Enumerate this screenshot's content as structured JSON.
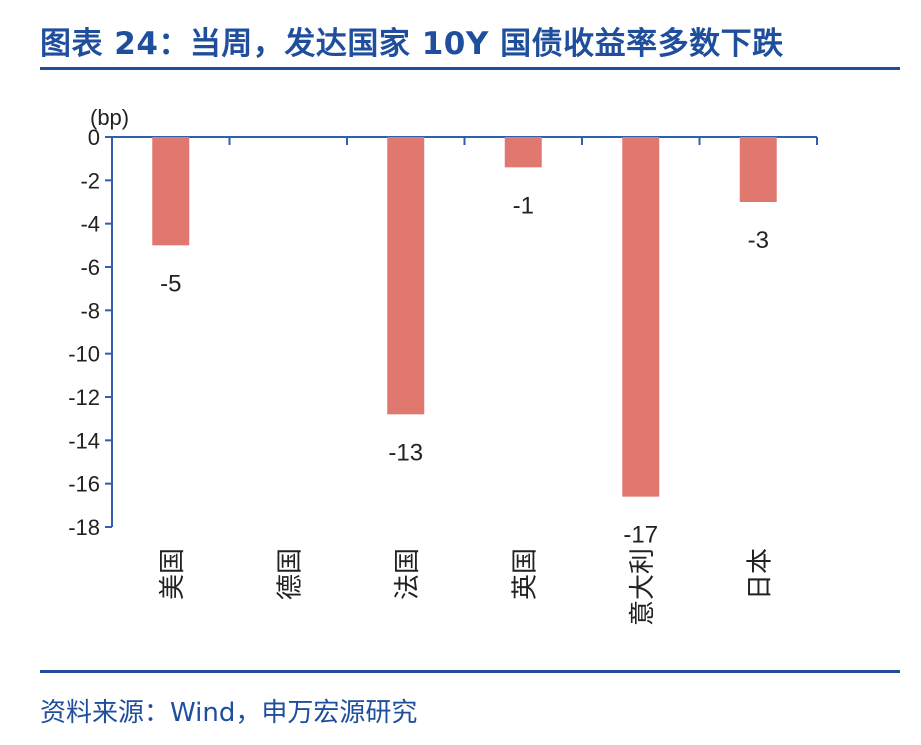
{
  "header": {
    "title": "图表 24：当周，发达国家 10Y 国债收益率多数下跌"
  },
  "footer": {
    "source": "资料来源：Wind，申万宏源研究"
  },
  "chart_data": {
    "type": "bar",
    "unit": "(bp)",
    "categories": [
      "美国",
      "德国",
      "法国",
      "英国",
      "意大利",
      "日本"
    ],
    "values": [
      -5,
      0,
      -12.8,
      -1.4,
      -16.6,
      -3
    ],
    "data_labels": [
      "-5",
      "",
      "-13",
      "-1",
      "-17",
      "-3"
    ],
    "ylim": [
      -18,
      0
    ],
    "yticks": [
      0,
      -2,
      -4,
      -6,
      -8,
      -10,
      -12,
      -14,
      -16,
      -18
    ],
    "bar_color": "#e07870",
    "axis_color": "#2f5fad",
    "grid": false,
    "legend": "none"
  }
}
